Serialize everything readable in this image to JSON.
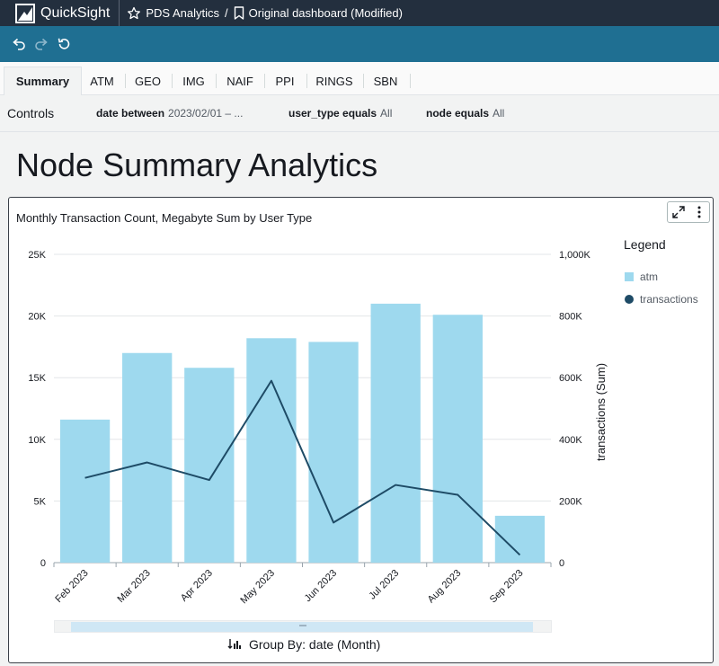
{
  "topbar": {
    "app_name": "QuickSight",
    "analysis_name": "PDS Analytics",
    "slash": "/",
    "dashboard_name": "Original dashboard (Modified)"
  },
  "toolbar": {
    "undo_icon": "undo-icon",
    "redo_icon": "redo-icon",
    "reset_icon": "reset-icon"
  },
  "tabs": [
    {
      "label": "Summary",
      "active": true
    },
    {
      "label": "ATM"
    },
    {
      "label": "GEO"
    },
    {
      "label": "IMG"
    },
    {
      "label": "NAIF"
    },
    {
      "label": "PPI"
    },
    {
      "label": "RINGS"
    },
    {
      "label": "SBN"
    }
  ],
  "controls": {
    "title": "Controls",
    "items": [
      {
        "label": "date between",
        "value": "2023/02/01 – ..."
      },
      {
        "label": "user_type equals",
        "value": "All"
      },
      {
        "label": "node equals",
        "value": "All"
      }
    ]
  },
  "page": {
    "title": "Node Summary Analytics"
  },
  "visual": {
    "title": "Monthly Transaction Count, Megabyte Sum by User Type",
    "legend_title": "Legend",
    "group_by": "Group By: date (Month)"
  },
  "chart_data": {
    "type": "bar",
    "title": "Monthly Transaction Count, Megabyte Sum by User Type",
    "categories": [
      "Feb 2023",
      "Mar 2023",
      "Apr 2023",
      "May 2023",
      "Jun 2023",
      "Jul 2023",
      "Aug 2023",
      "Sep 2023"
    ],
    "series": [
      {
        "name": "atm",
        "type": "bar",
        "axis": "left",
        "color": "#9ed9ee",
        "values": [
          11600,
          17000,
          15800,
          18200,
          17900,
          21000,
          20100,
          3800
        ]
      },
      {
        "name": "transactions",
        "type": "line",
        "axis": "right",
        "color": "#1e4b66",
        "values": [
          275000,
          325000,
          268000,
          590000,
          130000,
          252000,
          220000,
          25000
        ]
      }
    ],
    "ylim_left": [
      0,
      25000
    ],
    "yticks_left": [
      "0",
      "5K",
      "10K",
      "15K",
      "20K",
      "25K"
    ],
    "ylim_right": [
      0,
      1000000
    ],
    "yticks_right": [
      "0",
      "200K",
      "400K",
      "600K",
      "800K",
      "1,000K"
    ],
    "ylabel_right": "transactions (Sum)",
    "legend": [
      "atm",
      "transactions"
    ],
    "legend_position": "right",
    "grid": true
  }
}
